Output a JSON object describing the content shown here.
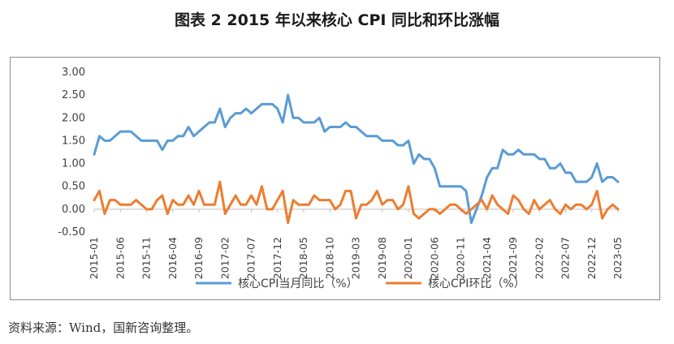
{
  "page": {
    "title": "图表 2  2015 年以来核心 CPI 同比和环比涨幅",
    "source": "资料来源：Wind，国新咨询整理。"
  },
  "colors": {
    "yoy": "#5b9bd5",
    "mom": "#ed7d31",
    "axis": "#bfbfbf",
    "text": "#404040"
  },
  "chart_data": {
    "type": "line",
    "title": "",
    "xlabel": "",
    "ylabel": "",
    "ylim": [
      -0.5,
      3.0
    ],
    "yticks": [
      "3.00",
      "2.50",
      "2.00",
      "1.50",
      "1.00",
      "0.50",
      "0.00",
      "-0.50"
    ],
    "xtick_labels": [
      "2015-01",
      "2015-06",
      "2015-11",
      "2016-04",
      "2016-09",
      "2017-02",
      "2017-07",
      "2017-12",
      "2018-05",
      "2018-10",
      "2019-03",
      "2019-08",
      "2020-01",
      "2020-06",
      "2020-11",
      "2021-04",
      "2021-09",
      "2022-02",
      "2022-07",
      "2022-12",
      "2023-05"
    ],
    "legend_position": "bottom",
    "x_start": "2015-01",
    "x_end": "2023-05",
    "series": [
      {
        "name": "核心CPI当月同比（%）",
        "values": [
          1.2,
          1.6,
          1.5,
          1.5,
          1.6,
          1.7,
          1.7,
          1.7,
          1.6,
          1.5,
          1.5,
          1.5,
          1.5,
          1.3,
          1.5,
          1.5,
          1.6,
          1.6,
          1.8,
          1.6,
          1.7,
          1.8,
          1.9,
          1.9,
          2.2,
          1.8,
          2.0,
          2.1,
          2.1,
          2.2,
          2.1,
          2.2,
          2.3,
          2.3,
          2.3,
          2.2,
          1.9,
          2.5,
          2.0,
          2.0,
          1.9,
          1.9,
          1.9,
          2.0,
          1.7,
          1.8,
          1.8,
          1.8,
          1.9,
          1.8,
          1.8,
          1.7,
          1.6,
          1.6,
          1.6,
          1.5,
          1.5,
          1.5,
          1.4,
          1.4,
          1.5,
          1.0,
          1.2,
          1.1,
          1.1,
          0.9,
          0.5,
          0.5,
          0.5,
          0.5,
          0.5,
          0.4,
          -0.3,
          0.0,
          0.3,
          0.7,
          0.9,
          0.9,
          1.3,
          1.2,
          1.2,
          1.3,
          1.2,
          1.2,
          1.2,
          1.1,
          1.1,
          0.9,
          0.9,
          1.0,
          0.8,
          0.8,
          0.6,
          0.6,
          0.6,
          0.7,
          1.0,
          0.6,
          0.7,
          0.7,
          0.6
        ]
      },
      {
        "name": "核心CPI环比（%）",
        "values": [
          0.2,
          0.4,
          -0.1,
          0.2,
          0.2,
          0.1,
          0.1,
          0.1,
          0.2,
          0.1,
          0.0,
          0.0,
          0.2,
          0.3,
          -0.1,
          0.2,
          0.1,
          0.1,
          0.3,
          0.1,
          0.4,
          0.1,
          0.1,
          0.1,
          0.6,
          -0.1,
          0.1,
          0.3,
          0.1,
          0.1,
          0.3,
          0.1,
          0.5,
          0.0,
          0.0,
          0.2,
          0.4,
          -0.3,
          0.2,
          0.1,
          0.1,
          0.1,
          0.3,
          0.2,
          0.2,
          0.2,
          0.0,
          0.1,
          0.4,
          0.4,
          -0.2,
          0.1,
          0.1,
          0.2,
          0.4,
          0.1,
          0.2,
          0.2,
          0.0,
          0.1,
          0.5,
          -0.1,
          -0.2,
          -0.1,
          0.0,
          0.0,
          -0.1,
          0.0,
          0.1,
          0.1,
          0.0,
          -0.1,
          0.0,
          0.1,
          0.2,
          0.0,
          0.3,
          0.1,
          0.0,
          -0.1,
          0.3,
          0.2,
          0.0,
          -0.1,
          0.2,
          0.0,
          0.1,
          0.2,
          0.0,
          -0.1,
          0.1,
          0.0,
          0.1,
          0.1,
          0.0,
          0.1,
          0.4,
          -0.2,
          0.0,
          0.1,
          0.0
        ]
      }
    ]
  }
}
